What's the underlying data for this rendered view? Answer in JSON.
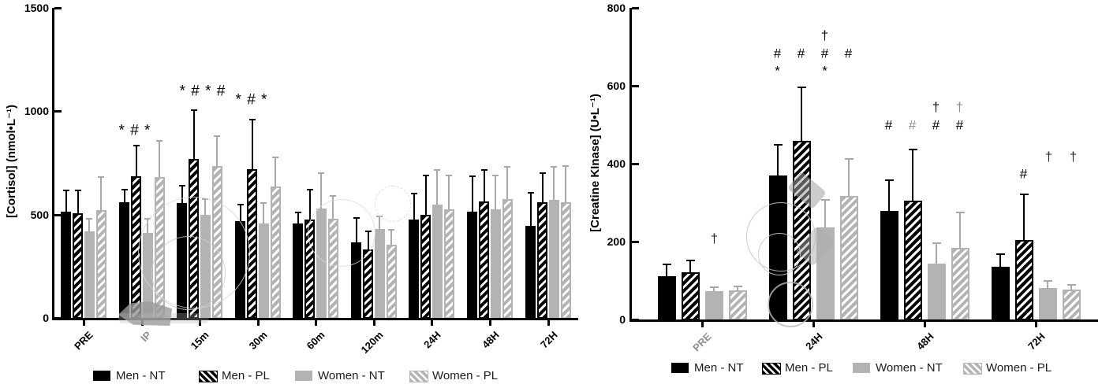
{
  "figure": {
    "background": "#ffffff"
  },
  "chart_data": [
    {
      "type": "bar",
      "title": "",
      "ylabel": "[Cortisol] (nmol•L⁻¹)",
      "ylim": [
        0,
        1500
      ],
      "yticks": [
        "0",
        "500",
        "1000",
        "1500"
      ],
      "grid": false,
      "categories": [
        "PRE",
        "IP",
        "15m",
        "30m",
        "60m",
        "120m",
        "24H",
        "48H",
        "72H"
      ],
      "muted_categories": [
        "IP"
      ],
      "series": [
        {
          "name": "Men - NT",
          "style": "men-solid",
          "values": [
            515,
            560,
            555,
            470,
            455,
            365,
            475,
            515,
            445
          ],
          "sd": [
            100,
            60,
            85,
            80,
            55,
            120,
            125,
            170,
            160
          ]
        },
        {
          "name": "Men - PL",
          "style": "men-hatch",
          "values": [
            505,
            685,
            770,
            720,
            475,
            330,
            500,
            565,
            560
          ],
          "sd": [
            110,
            150,
            235,
            240,
            145,
            90,
            190,
            150,
            140
          ]
        },
        {
          "name": "Women - NT",
          "style": "women-solid",
          "values": [
            420,
            410,
            500,
            455,
            530,
            430,
            550,
            525,
            570
          ],
          "sd": [
            60,
            70,
            75,
            100,
            170,
            60,
            165,
            165,
            160
          ]
        },
        {
          "name": "Women - PL",
          "style": "women-hatch",
          "values": [
            520,
            680,
            735,
            635,
            480,
            355,
            525,
            575,
            560
          ],
          "sd": [
            160,
            175,
            145,
            140,
            110,
            70,
            165,
            155,
            175
          ]
        }
      ],
      "annotations": [
        {
          "text": "* # *",
          "x": 171,
          "y": 166,
          "color": "#000000"
        },
        {
          "text": "* # * #",
          "x": 257,
          "y": 116,
          "color": "#000000"
        },
        {
          "text": "* # *",
          "x": 319,
          "y": 127,
          "color": "#000000"
        }
      ]
    },
    {
      "type": "bar",
      "title": "",
      "ylabel": "[Creatine KInase] (U•L⁻¹)",
      "ylim": [
        0,
        800
      ],
      "yticks": [
        "0",
        "200",
        "400",
        "600",
        "800"
      ],
      "grid": false,
      "categories": [
        "PRE",
        "24H",
        "48H",
        "72H"
      ],
      "muted_categories": [
        "PRE"
      ],
      "series": [
        {
          "name": "Men - NT",
          "style": "men-solid",
          "values": [
            112,
            370,
            279,
            135
          ],
          "sd": [
            30,
            78,
            78,
            33
          ]
        },
        {
          "name": "Men - PL",
          "style": "men-hatch",
          "values": [
            122,
            458,
            305,
            204
          ],
          "sd": [
            30,
            138,
            131,
            117
          ]
        },
        {
          "name": "Women - NT",
          "style": "women-solid",
          "values": [
            72,
            236,
            143,
            81
          ],
          "sd": [
            10,
            72,
            53,
            18
          ]
        },
        {
          "name": "Women - PL",
          "style": "women-hatch",
          "values": [
            74,
            317,
            184,
            77
          ],
          "sd": [
            11,
            95,
            90,
            12
          ]
        }
      ],
      "annotations": [
        {
          "text": "†",
          "x": 906,
          "y": 303,
          "color": "#2b2b2b"
        },
        {
          "text": "#",
          "x": 986,
          "y": 68,
          "color": "#000000"
        },
        {
          "text": "*",
          "x": 986,
          "y": 90,
          "color": "#000000"
        },
        {
          "text": "#",
          "x": 1016,
          "y": 68,
          "color": "#000000"
        },
        {
          "text": "†",
          "x": 1046,
          "y": 45,
          "color": "#000000"
        },
        {
          "text": "#",
          "x": 1046,
          "y": 68,
          "color": "#000000"
        },
        {
          "text": "*",
          "x": 1046,
          "y": 90,
          "color": "#000000"
        },
        {
          "text": "#",
          "x": 1076,
          "y": 68,
          "color": "#000000"
        },
        {
          "text": "#",
          "x": 1127,
          "y": 159,
          "color": "#000000"
        },
        {
          "text": "#",
          "x": 1157,
          "y": 159,
          "color": "#8c8c8c"
        },
        {
          "text": "†",
          "x": 1187,
          "y": 136,
          "color": "#000000"
        },
        {
          "text": "#",
          "x": 1187,
          "y": 159,
          "color": "#000000"
        },
        {
          "text": "†",
          "x": 1217,
          "y": 136,
          "color": "#8c8c8c"
        },
        {
          "text": "#",
          "x": 1217,
          "y": 159,
          "color": "#000000"
        },
        {
          "text": "#",
          "x": 1298,
          "y": 221,
          "color": "#000000"
        },
        {
          "text": "†",
          "x": 1330,
          "y": 199,
          "color": "#2b2b2b"
        },
        {
          "text": "†",
          "x": 1361,
          "y": 199,
          "color": "#2b2b2b"
        }
      ]
    }
  ],
  "legend": {
    "items": [
      {
        "label": "Men - NT",
        "style": "men-solid"
      },
      {
        "label": "Men - PL",
        "style": "men-hatch"
      },
      {
        "label": "Women - NT",
        "style": "women-solid"
      },
      {
        "label": "Women - PL",
        "style": "women-hatch"
      }
    ]
  },
  "colors": {
    "men": "#000000",
    "women": "#b3b3b3",
    "women_error": "#a8a8a8",
    "muted_label": "#8f8f8f",
    "watermark": "#c9c9c9"
  }
}
